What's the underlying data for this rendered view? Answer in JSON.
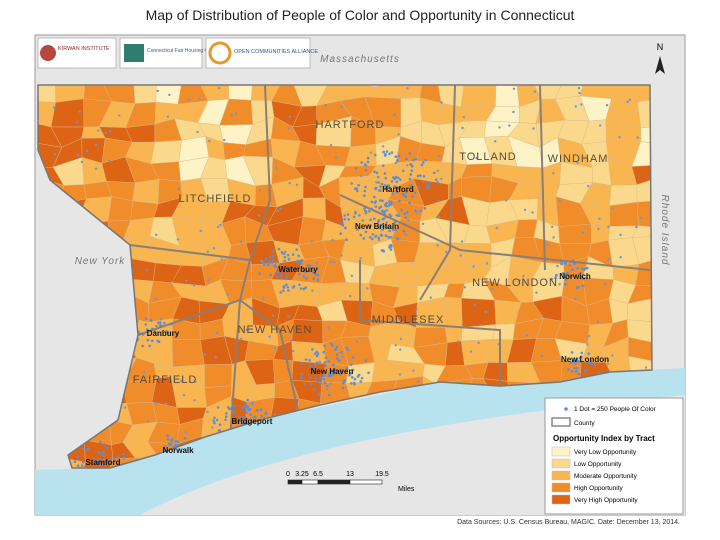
{
  "header": {
    "title": "Map of Distribution of People of Color and Opportunity in Connecticut"
  },
  "logos": [
    "KIRWAN INSTITUTE",
    "Connecticut Fair Housing Center",
    "OPEN COMMUNITIES ALLIANCE"
  ],
  "states": [
    "Massachusetts",
    "New York",
    "Rhode Island"
  ],
  "counties": [
    "HARTFORD",
    "TOLLAND",
    "WINDHAM",
    "LITCHFIELD",
    "NEW LONDON",
    "MIDDLESEX",
    "NEW HAVEN",
    "FAIRFIELD"
  ],
  "cities": [
    "Hartford",
    "New Britain",
    "Waterbury",
    "Norwich",
    "Danbury",
    "New London",
    "New Haven",
    "Bridgeport",
    "Norwalk",
    "Stamford"
  ],
  "north": "N",
  "legend": {
    "dot": "1 Dot = 250 People Of Color",
    "county": "County",
    "title": "Opportunity Index by Tract",
    "classes": [
      {
        "label": "Very Low Opportunity",
        "color": "#fdf3c6"
      },
      {
        "label": "Low Opportunity",
        "color": "#fbd98c"
      },
      {
        "label": "Moderate Opportunity",
        "color": "#f9b550"
      },
      {
        "label": "High Opportunity",
        "color": "#f08c2a"
      },
      {
        "label": "Very High Opportunity",
        "color": "#dc6414"
      }
    ]
  },
  "scale_bar": {
    "ticks": [
      "0",
      "3.25",
      "6.5",
      "13",
      "19.5"
    ],
    "unit": "Miles"
  },
  "source": "Data Sources: U.S. Census Bureau, MAGIC. Date: December 13, 2014."
}
